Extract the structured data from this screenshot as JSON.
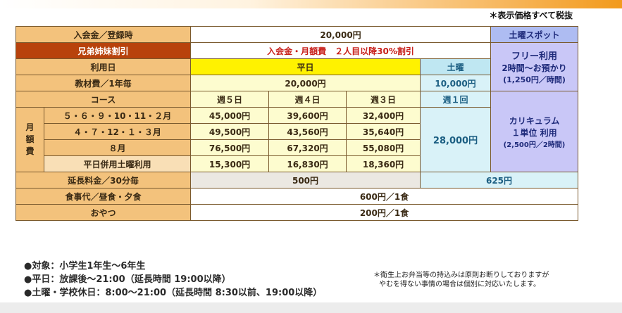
{
  "tax_note": "＊表示価格すべて税抜",
  "table": {
    "row_join": {
      "label": "入会金／登録時",
      "value": "20,000円"
    },
    "saturday_spot_header": "土曜スポット",
    "row_sibling": {
      "label": "兄弟姉妹割引",
      "value": "入会金・月額費　２人目以降30%割引"
    },
    "row_day": {
      "label": "利用日",
      "weekday": "平日",
      "saturday": "土曜"
    },
    "free_use": {
      "line1": "フリー利用",
      "line2": "2時間～お預かり",
      "line3": "(1,250円／時間)"
    },
    "row_material": {
      "label": "教材費／1年毎",
      "weekday": "20,000円",
      "saturday": "10,000円"
    },
    "row_course": {
      "label": "コース",
      "c1": "週５日",
      "c2": "週４日",
      "c3": "週３日",
      "sat": "週１回"
    },
    "monthly_label": [
      "月",
      "額",
      "費"
    ],
    "monthly_rows": [
      {
        "months": "５・６・９・10・11・２月",
        "c1": "45,000円",
        "c2": "39,600円",
        "c3": "32,400円"
      },
      {
        "months": "４・７・12・１・３月",
        "c1": "49,500円",
        "c2": "43,560円",
        "c3": "35,640円"
      },
      {
        "months": "８月",
        "c1": "76,500円",
        "c2": "67,320円",
        "c3": "55,080円"
      },
      {
        "months": "平日併用土曜利用",
        "c1": "15,300円",
        "c2": "16,830円",
        "c3": "18,360円"
      }
    ],
    "saturday_monthly": "28,000円",
    "curriculum": {
      "line1": "カリキュラム",
      "line2": "１単位 利用",
      "line3": "(2,500円／2時間)"
    },
    "row_extension": {
      "label": "延長料金／30分毎",
      "weekday": "500円",
      "saturday": "625円"
    },
    "row_meal": {
      "label": "食事代／昼食・夕食",
      "value": "600円／1食"
    },
    "row_snack": {
      "label": "おやつ",
      "value": "200円／1食"
    }
  },
  "notes": [
    "●対象：小学生1年生～6年生",
    "●平日：放課後～21:00（延長時間 19:00以降）",
    "●土曜・学校休日：8:00～21:00（延長時間 8:30以前、19:00以降）"
  ],
  "small_note": {
    "line1": "＊衛生上お弁当等の持込みは原則お断りしておりますが",
    "line2": "やむを得ない事情の場合は個別に対応いたします。"
  }
}
